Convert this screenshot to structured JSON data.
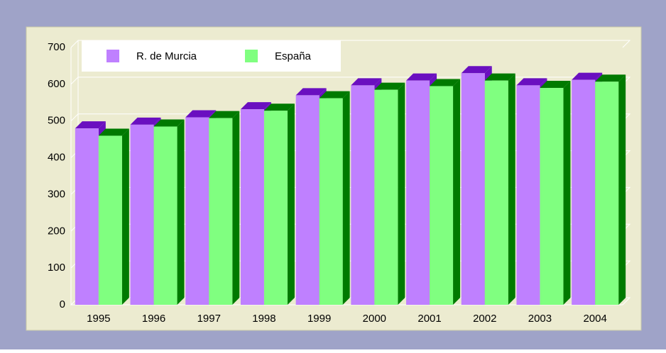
{
  "chart_data": {
    "type": "bar3d",
    "categories": [
      "1995",
      "1996",
      "1997",
      "1998",
      "1999",
      "2000",
      "2001",
      "2002",
      "2003",
      "2004"
    ],
    "series": [
      {
        "name": "R. de Murcia",
        "color": "#bf80ff",
        "shade": "#6a0fc0",
        "values": [
          480,
          490,
          510,
          532,
          570,
          597,
          610,
          630,
          597,
          612
        ]
      },
      {
        "name": "España",
        "color": "#80ff80",
        "shade": "#007a00",
        "values": [
          460,
          485,
          508,
          528,
          562,
          585,
          595,
          610,
          590,
          607
        ]
      }
    ],
    "ylim": [
      0,
      700
    ],
    "yticks": [
      0,
      100,
      200,
      300,
      400,
      500,
      600,
      700
    ],
    "grid": true
  }
}
